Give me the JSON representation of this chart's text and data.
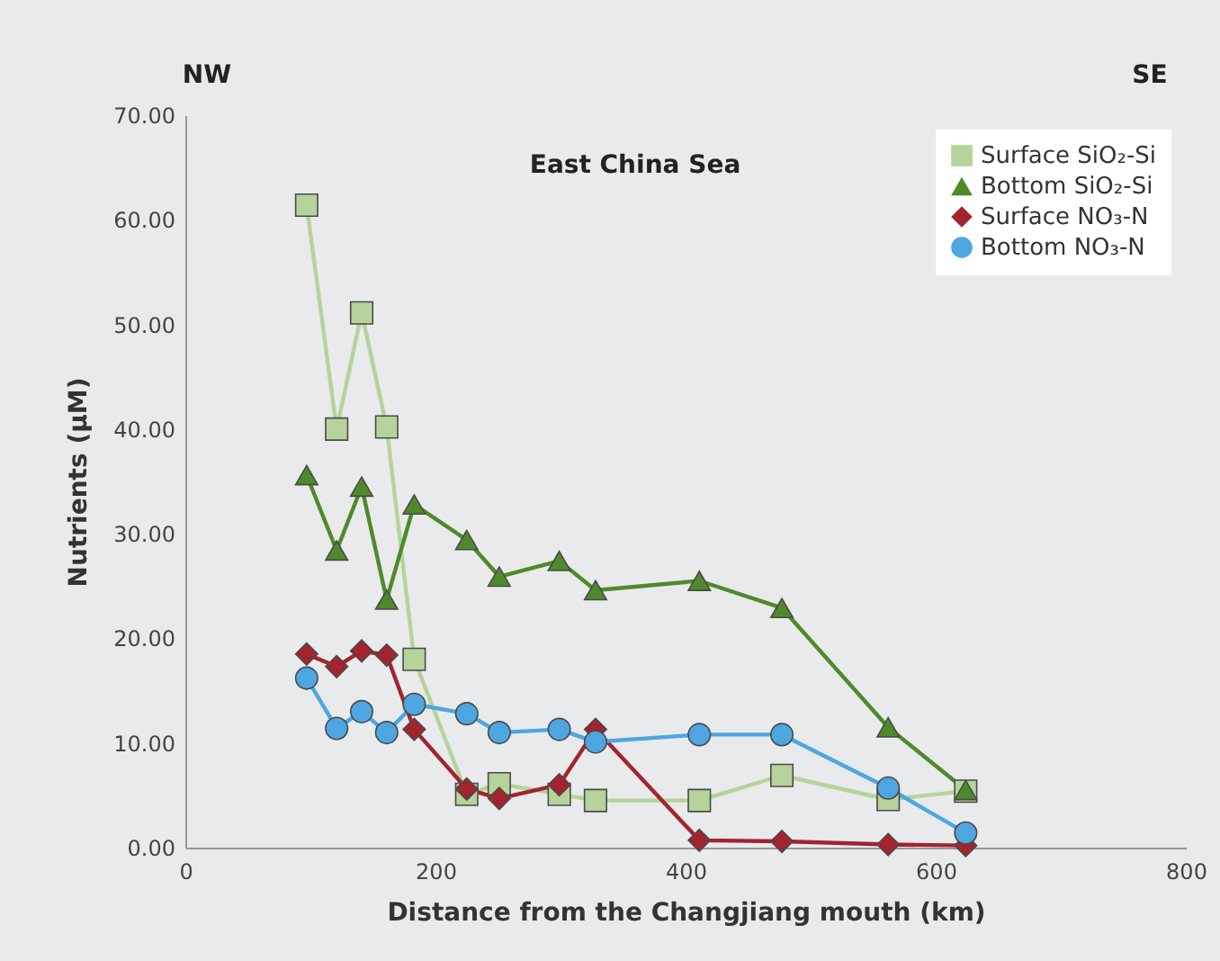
{
  "chart_data": {
    "type": "line",
    "title": "East China Sea",
    "xlabel": "Distance from the Changjiang mouth (km)",
    "ylabel": "Nutrients (µM)",
    "annotations": [
      "NW",
      "SE"
    ],
    "x": [
      97,
      121,
      141,
      161,
      183,
      225,
      251,
      299,
      328,
      411,
      477,
      562,
      624
    ],
    "series": [
      {
        "name": "Surface SiO₂-Si",
        "color": "#b5d39a",
        "marker": "square",
        "values": [
          61.4,
          40.0,
          51.1,
          40.2,
          18.0,
          5.1,
          6.1,
          5.1,
          4.5,
          4.5,
          6.9,
          4.6,
          5.4
        ]
      },
      {
        "name": "Bottom SiO₂-Si",
        "color": "#4f8a2a",
        "marker": "triangle",
        "values": [
          35.6,
          28.4,
          34.5,
          23.7,
          32.8,
          29.4,
          25.9,
          27.4,
          24.6,
          25.5,
          22.9,
          11.5,
          5.5
        ]
      },
      {
        "name": "Surface NO₃-N",
        "color": "#a3232f",
        "marker": "diamond",
        "values": [
          18.5,
          17.3,
          18.8,
          18.4,
          11.3,
          5.6,
          4.7,
          6.0,
          11.3,
          0.7,
          0.6,
          0.3,
          0.2
        ]
      },
      {
        "name": "Bottom NO₃-N",
        "color": "#4da6e0",
        "marker": "circle",
        "values": [
          16.2,
          11.4,
          13.0,
          11.0,
          13.7,
          12.8,
          11.0,
          11.3,
          10.1,
          10.8,
          10.8,
          5.7,
          1.4
        ]
      }
    ],
    "xlim": [
      0,
      800
    ],
    "xticks": [
      0,
      200,
      400,
      600,
      800
    ],
    "ylim": [
      0,
      70
    ],
    "yticks": [
      {
        "value": 0,
        "label": "0.00"
      },
      {
        "value": 10,
        "label": "10.00"
      },
      {
        "value": 20,
        "label": "20.00"
      },
      {
        "value": 30,
        "label": "30.00"
      },
      {
        "value": 40,
        "label": "40.00"
      },
      {
        "value": 50,
        "label": "50.00"
      },
      {
        "value": 60,
        "label": "60.00"
      },
      {
        "value": 70,
        "label": "70.00"
      }
    ],
    "grid": false,
    "legend": "top right",
    "line_style": "solid"
  }
}
